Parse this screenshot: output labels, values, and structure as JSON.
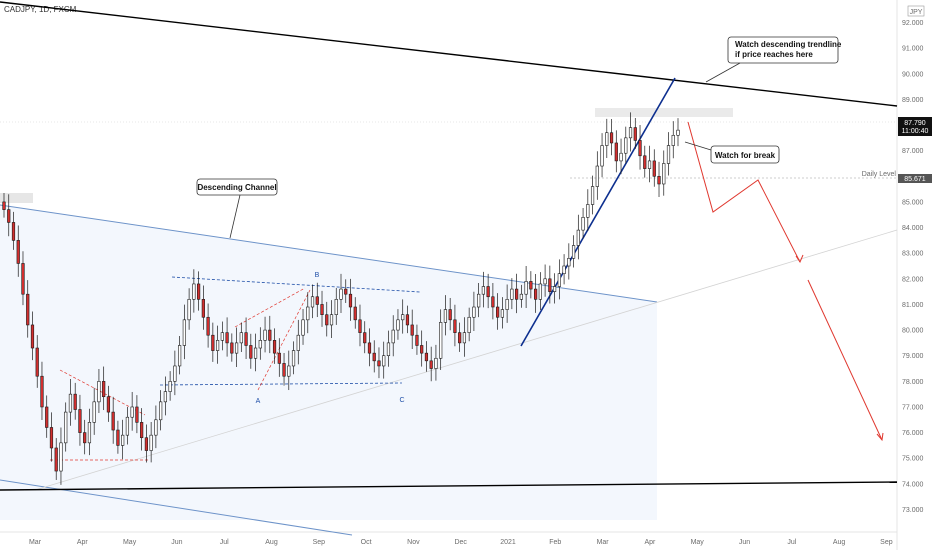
{
  "header": {
    "symbol_line": "CADJPY, 1D, FXCM"
  },
  "colors": {
    "up": "#ffffff",
    "down": "#d32f2f",
    "wick": "#1a1a1a",
    "channel": "#6d93c9",
    "trend_black": "#000000",
    "trend_blue": "#0d2f8f",
    "arrow_red": "#e0382f",
    "last_tag": "#111111",
    "level_tag": "#555555"
  },
  "chart_data": {
    "type": "candlestick",
    "symbol": "CADJPY",
    "timeframe": "1D",
    "source": "FXCM",
    "ylim": [
      72.2,
      92.8
    ],
    "y_ticks": [
      73.0,
      74.0,
      75.0,
      76.0,
      77.0,
      78.0,
      79.0,
      80.0,
      81.0,
      82.0,
      83.0,
      84.0,
      85.0,
      86.0,
      87.0,
      88.0,
      89.0,
      90.0,
      91.0,
      92.0
    ],
    "y_tick_labels": [
      "73.000",
      "74.000",
      "75.000",
      "76.000",
      "77.000",
      "78.000",
      "79.000",
      "80.000",
      "81.000",
      "82.000",
      "83.000",
      "84.000",
      "85.000",
      "86.000",
      "87.000",
      "88.000",
      "89.000",
      "90.000",
      "91.000",
      "92.000"
    ],
    "x_tick_labels": [
      "Mar",
      "Apr",
      "May",
      "Jun",
      "Jul",
      "Aug",
      "Sep",
      "Oct",
      "Nov",
      "Dec",
      "2021",
      "Feb",
      "Mar",
      "Apr",
      "May",
      "Jun",
      "Jul",
      "Aug",
      "Sep"
    ],
    "currency_label": "JPY",
    "last_price": "87.790",
    "last_time": "11:00:40",
    "daily_level": {
      "label": "Daily Level",
      "value": "85.671"
    },
    "closes": [
      84.7,
      84.2,
      83.5,
      82.6,
      81.4,
      80.2,
      79.3,
      78.2,
      77.0,
      76.2,
      75.4,
      74.5,
      75.6,
      76.8,
      77.5,
      76.9,
      76.0,
      75.6,
      76.4,
      77.2,
      78.0,
      77.4,
      76.8,
      76.1,
      75.5,
      75.9,
      76.6,
      77.0,
      76.4,
      75.8,
      75.3,
      75.9,
      76.5,
      77.2,
      77.6,
      78.0,
      78.6,
      79.4,
      80.4,
      81.2,
      81.8,
      81.2,
      80.5,
      79.8,
      79.2,
      79.6,
      79.9,
      79.5,
      79.1,
      79.5,
      79.9,
      79.4,
      78.9,
      79.3,
      79.6,
      80.0,
      79.6,
      79.1,
      78.7,
      78.2,
      78.6,
      79.2,
      79.8,
      80.4,
      80.9,
      81.3,
      81.0,
      80.6,
      80.2,
      80.6,
      81.2,
      81.6,
      81.4,
      80.9,
      80.4,
      79.9,
      79.5,
      79.1,
      78.8,
      78.6,
      79.0,
      79.5,
      80.0,
      80.4,
      80.6,
      80.2,
      79.8,
      79.4,
      79.1,
      78.8,
      78.5,
      78.9,
      80.3,
      80.8,
      80.4,
      79.9,
      79.5,
      79.9,
      80.5,
      80.9,
      81.4,
      81.7,
      81.3,
      80.9,
      80.5,
      80.8,
      81.2,
      81.6,
      81.2,
      81.4,
      81.9,
      81.6,
      81.2,
      81.8,
      82.0,
      81.5,
      81.7,
      82.2,
      82.5,
      82.8,
      83.3,
      83.9,
      84.4,
      84.9,
      85.6,
      86.4,
      87.2,
      87.7,
      87.3,
      86.6,
      86.9,
      87.5,
      87.9,
      87.4,
      86.8,
      86.3,
      86.6,
      86.0,
      85.7,
      86.5,
      87.2,
      87.6,
      87.8
    ],
    "annotations": [
      {
        "text": "Descending Channel",
        "kind": "callout"
      },
      {
        "text": "Watch descending trendline",
        "kind": "callout"
      },
      {
        "text": "if price reaches here",
        "kind": "callout"
      },
      {
        "text": "Watch for break",
        "kind": "callout"
      },
      {
        "text": "A",
        "kind": "pattern-point"
      },
      {
        "text": "B",
        "kind": "pattern-point"
      },
      {
        "text": "C",
        "kind": "pattern-point"
      }
    ]
  }
}
